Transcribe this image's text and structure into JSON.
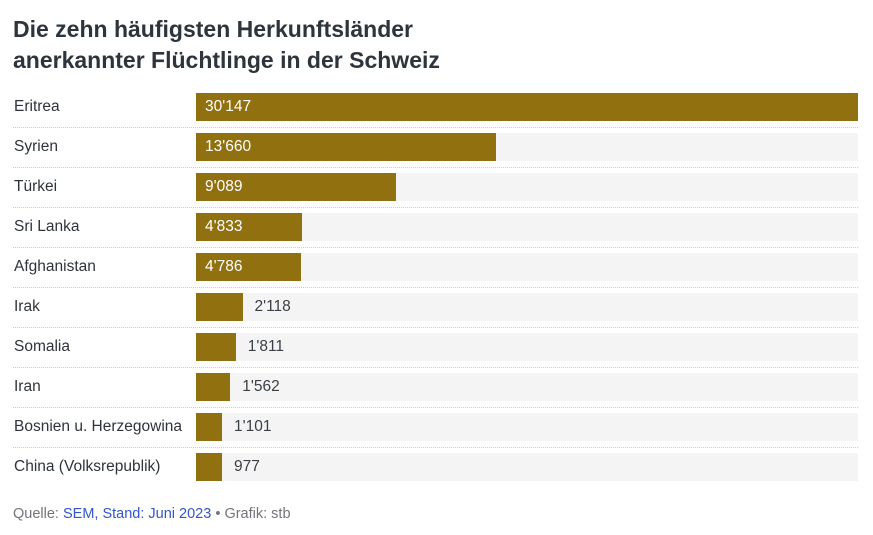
{
  "title": {
    "line1": "Die zehn häufigsten Herkunftsländer",
    "line2": "anerkannter Flüchtlinge in der Schweiz"
  },
  "chart_data": {
    "type": "bar",
    "orientation": "horizontal",
    "title": "Die zehn häufigsten Herkunftsländer anerkannter Flüchtlinge in der Schweiz",
    "categories": [
      "Eritrea",
      "Syrien",
      "Türkei",
      "Sri Lanka",
      "Afghanistan",
      "Irak",
      "Somalia",
      "Iran",
      "Bosnien u. Herzegowina",
      "China (Volksrepublik)"
    ],
    "values": [
      30147,
      13660,
      9089,
      4833,
      4786,
      2118,
      1811,
      1562,
      1101,
      977
    ],
    "value_labels": [
      "30'147",
      "13'660",
      "9'089",
      "4'833",
      "4'786",
      "2'118",
      "1'811",
      "1'562",
      "1'101",
      "977"
    ],
    "max_value": 30147,
    "xlim": [
      0,
      30147
    ],
    "bar_color": "#90700f",
    "track_color": "#f4f4f4",
    "grid": "off",
    "legend": "none",
    "xlabel": "",
    "ylabel": ""
  },
  "footer": {
    "prefix": "Quelle: ",
    "source_link": "SEM, Stand: Juni 2023",
    "separator": " • ",
    "credit": "Grafik: stb"
  }
}
